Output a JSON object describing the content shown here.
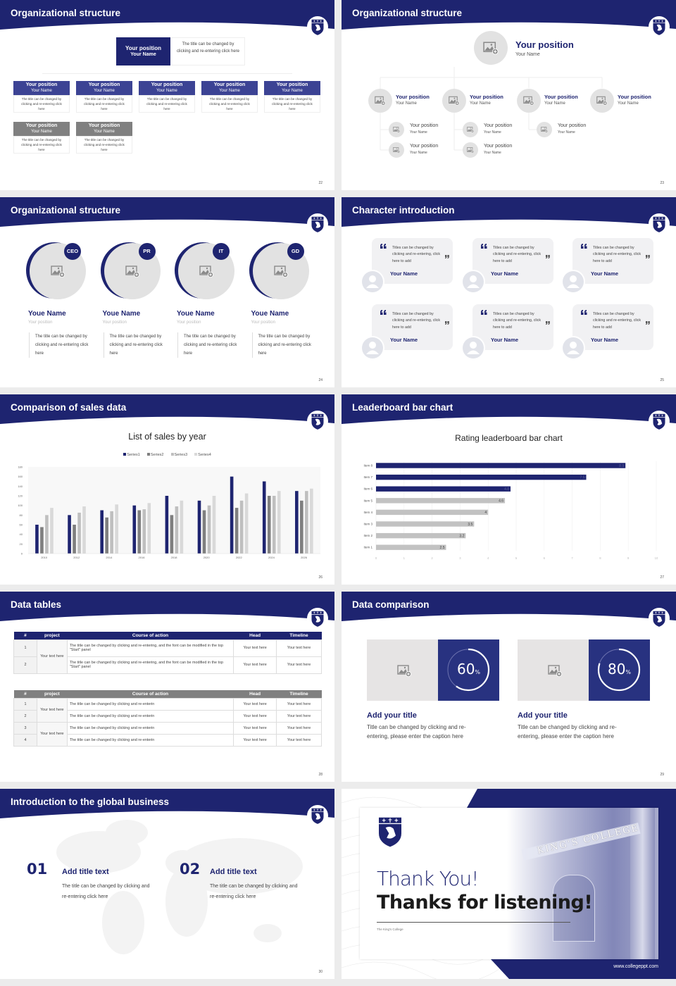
{
  "colors": {
    "navy": "#1e2470",
    "mid_blue": "#3c4394",
    "gray": "#7f7f7f",
    "light_gray": "#e4e4e4",
    "bar_gray": "#c2c2c2"
  },
  "slide22": {
    "title": "Organizational structure",
    "page": "22",
    "top": {
      "position": "Your position",
      "name": "Your Name",
      "desc": "The title can be changed by clicking and re-entering click here"
    },
    "row1": [
      {
        "position": "Your position",
        "name": "Your Name",
        "desc": "The title can be changed by clicking and re-entering click here"
      },
      {
        "position": "Your position",
        "name": "Your Name",
        "desc": "The title can be changed by clicking and re-entering click here"
      },
      {
        "position": "Your position",
        "name": "Your Name",
        "desc": "The title can be changed by clicking and re-entering click here"
      },
      {
        "position": "Your position",
        "name": "Your Name",
        "desc": "The title can be changed by clicking and re-entering click here"
      },
      {
        "position": "Your position",
        "name": "Your Name",
        "desc": "The title can be changed by clicking and re-entering click here"
      }
    ],
    "row2": [
      {
        "position": "Your position",
        "name": "Your Name",
        "desc": "The title can be changed by clicking and re-entering click here"
      },
      {
        "position": "Your position",
        "name": "Your Name",
        "desc": "The title can be changed by clicking and re-entering click here"
      }
    ]
  },
  "slide23": {
    "title": "Organizational structure",
    "page": "23",
    "top": {
      "position": "Your position",
      "name": "Your Name"
    },
    "level2": [
      {
        "position": "Your position",
        "name": "Your Name"
      },
      {
        "position": "Your position",
        "name": "Your Name"
      },
      {
        "position": "Your position",
        "name": "Your Name"
      },
      {
        "position": "Your position",
        "name": "Your Name"
      }
    ],
    "level3": [
      [
        {
          "position": "Your position",
          "name": "Your Name"
        },
        {
          "position": "Your position",
          "name": "Your Name"
        }
      ],
      [
        {
          "position": "Your position",
          "name": "Your Name"
        },
        {
          "position": "Your position",
          "name": "Your Name"
        }
      ],
      [
        {
          "position": "Your position",
          "name": "Your Name"
        }
      ]
    ]
  },
  "slide24": {
    "title": "Organizational structure",
    "page": "24",
    "members": [
      {
        "badge": "CEO",
        "name": "Youe Name",
        "position": "Your position",
        "desc": "The title can be changed by clicking and re-entering click here"
      },
      {
        "badge": "PR",
        "name": "Youe Name",
        "position": "Your position",
        "desc": "The title can be changed by clicking and re-entering click here"
      },
      {
        "badge": "IT",
        "name": "Youe Name",
        "position": "Your position",
        "desc": "The title can be changed by clicking and re-entering click here"
      },
      {
        "badge": "GD",
        "name": "Youe Name",
        "position": "Your position",
        "desc": "The title can be changed by clicking and re-entering click here"
      }
    ]
  },
  "slide25": {
    "title": "Character introduction",
    "page": "25",
    "cards": [
      {
        "quote": "Titles can be changed by clicking and re-entering, click here to add",
        "name": "Your Name"
      },
      {
        "quote": "Titles can be changed by clicking and re-entering, click here to add",
        "name": "Your Name"
      },
      {
        "quote": "Titles can be changed by clicking and re-entering, click here to add",
        "name": "Your Name"
      },
      {
        "quote": "Titles can be changed by clicking and re-entering, click here to add",
        "name": "Your Name"
      },
      {
        "quote": "Titles can be changed by clicking and re-entering, click here to add",
        "name": "Your Name"
      },
      {
        "quote": "Titles can be changed by clicking and re-entering, click here to add",
        "name": "Your Name"
      }
    ]
  },
  "slide26": {
    "title": "Comparison of sales data",
    "page": "26"
  },
  "slide27": {
    "title": "Leaderboard bar chart",
    "page": "27"
  },
  "chart_data": [
    {
      "type": "bar",
      "title": "List of sales by year",
      "xlabel": "",
      "ylabel": "",
      "ylim": [
        0,
        180
      ],
      "yticks": [
        0,
        20,
        40,
        60,
        80,
        100,
        120,
        140,
        160,
        180
      ],
      "grid": false,
      "legend": "top",
      "categories": [
        "2010",
        "2012",
        "2014",
        "2016",
        "2018",
        "2020",
        "2022",
        "2024",
        "2026"
      ],
      "series": [
        {
          "name": "Series1",
          "color": "#1e2470",
          "values": [
            60,
            80,
            90,
            100,
            120,
            110,
            160,
            150,
            130
          ]
        },
        {
          "name": "Series2",
          "color": "#7f7f7f",
          "values": [
            55,
            60,
            75,
            90,
            80,
            90,
            95,
            120,
            110
          ]
        },
        {
          "name": "Series3",
          "color": "#bfbfbf",
          "values": [
            80,
            85,
            88,
            92,
            98,
            100,
            110,
            120,
            130
          ]
        },
        {
          "name": "Series4",
          "color": "#d9d9d9",
          "values": [
            95,
            98,
            102,
            105,
            110,
            120,
            125,
            130,
            135
          ]
        }
      ]
    },
    {
      "type": "bar",
      "orientation": "horizontal",
      "title": "Rating leaderboard bar chart",
      "xlim": [
        0,
        10
      ],
      "xticks": [
        0,
        1,
        2,
        3,
        4,
        5,
        6,
        7,
        8,
        9,
        10
      ],
      "grid": true,
      "categories": [
        "Item 8",
        "Item 7",
        "Item 6",
        "Item 5",
        "Item 4",
        "Item 3",
        "Item 2",
        "Item 1"
      ],
      "values": [
        8.9,
        7.5,
        4.8,
        4.6,
        4,
        3.5,
        3.2,
        2.5
      ],
      "colors": [
        "#1e2470",
        "#1e2470",
        "#1e2470",
        "#c2c2c2",
        "#c2c2c2",
        "#c2c2c2",
        "#c2c2c2",
        "#c2c2c2"
      ]
    }
  ],
  "slide28": {
    "title": "Data tables",
    "page": "28",
    "table1": {
      "headers": [
        "#",
        "project",
        "Course of action",
        "Head",
        "Timeline"
      ],
      "groups": [
        {
          "project": "Your text here",
          "rows": [
            {
              "num": "1",
              "action": "The title can be changed by clicking and re-entering, and the font can be modified in the top \"Start\" panel",
              "head": "Your text here",
              "timeline": "Your text here"
            },
            {
              "num": "2",
              "action": "The title can be changed by clicking and re-entering, and the font can be modified in the top \"Start\" panel",
              "head": "Your text here",
              "timeline": "Your text here"
            }
          ]
        }
      ]
    },
    "table2": {
      "headers": [
        "#",
        "project",
        "Course of action",
        "Head",
        "Timeline"
      ],
      "groups": [
        {
          "project": "Your text here",
          "rows": [
            {
              "num": "1",
              "action": "The title can be changed by clicking and re-enterin",
              "head": "Your text here",
              "timeline": "Your text here"
            },
            {
              "num": "2",
              "action": "The title can be changed by clicking and re-enterin",
              "head": "Your text here",
              "timeline": "Your text here"
            }
          ]
        },
        {
          "project": "Your text here",
          "rows": [
            {
              "num": "3",
              "action": "The title can be changed by clicking and re-enterin",
              "head": "Your text here",
              "timeline": "Your text here"
            },
            {
              "num": "4",
              "action": "The title can be changed by clicking and re-enterin",
              "head": "Your text here",
              "timeline": "Your text here"
            }
          ]
        }
      ]
    }
  },
  "slide29": {
    "title": "Data comparison",
    "page": "29",
    "items": [
      {
        "percent": 60,
        "value": "60",
        "unit": "%",
        "title": "Add your title",
        "body": "Title can be changed by clicking and re-entering, please enter the caption here"
      },
      {
        "percent": 80,
        "value": "80",
        "unit": "%",
        "title": "Add your title",
        "body": "Title can be changed by clicking and re-entering, please enter the caption here"
      }
    ]
  },
  "slide30": {
    "title": "Introduction to the global business",
    "page": "30",
    "items": [
      {
        "num": "01",
        "title": "Add title text",
        "body": "The title can be changed by clicking and re-entering click here"
      },
      {
        "num": "02",
        "title": "Add title text",
        "body": "The title can be changed by clicking and re-entering click here"
      }
    ]
  },
  "slide31": {
    "thanks": "Thank You!",
    "subtitle": "Thanks for listening!",
    "college": "The King's College",
    "url": "www.collegeppt.com",
    "photo_sign": "KING'S COLLEGE"
  }
}
